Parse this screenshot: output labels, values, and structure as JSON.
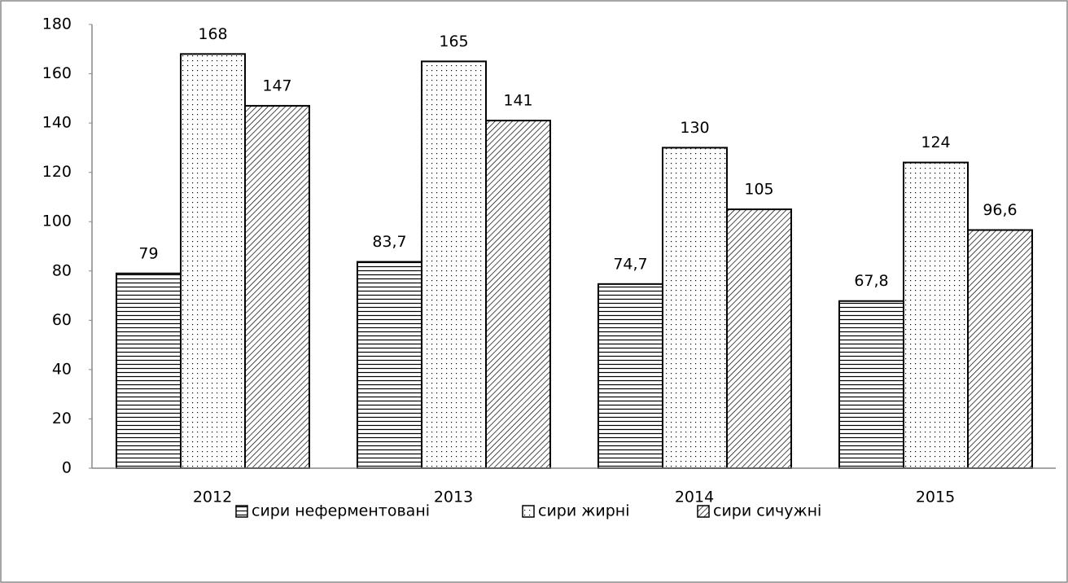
{
  "chart_data": {
    "type": "bar",
    "categories": [
      "2012",
      "2013",
      "2014",
      "2015"
    ],
    "series": [
      {
        "name": "сири неферментовані",
        "color": "#000000",
        "pattern": "horizontal",
        "values": [
          79,
          83.7,
          74.7,
          67.8
        ],
        "value_labels": [
          "79",
          "83,7",
          "74,7",
          "67,8"
        ]
      },
      {
        "name": "сири жирні",
        "color": "#000000",
        "pattern": "dots",
        "values": [
          168,
          165,
          130,
          124
        ]
      },
      {
        "name": "сири сичужні",
        "color": "#000000",
        "pattern": "diagonal",
        "values": [
          147,
          141,
          105,
          96.6
        ],
        "value_labels": [
          "147",
          "141",
          "105",
          "96,6"
        ]
      }
    ],
    "ylim": [
      0,
      180
    ],
    "yticks": [
      0,
      20,
      40,
      60,
      80,
      100,
      120,
      140,
      160,
      180
    ],
    "grid": false,
    "legend": "bottom"
  }
}
